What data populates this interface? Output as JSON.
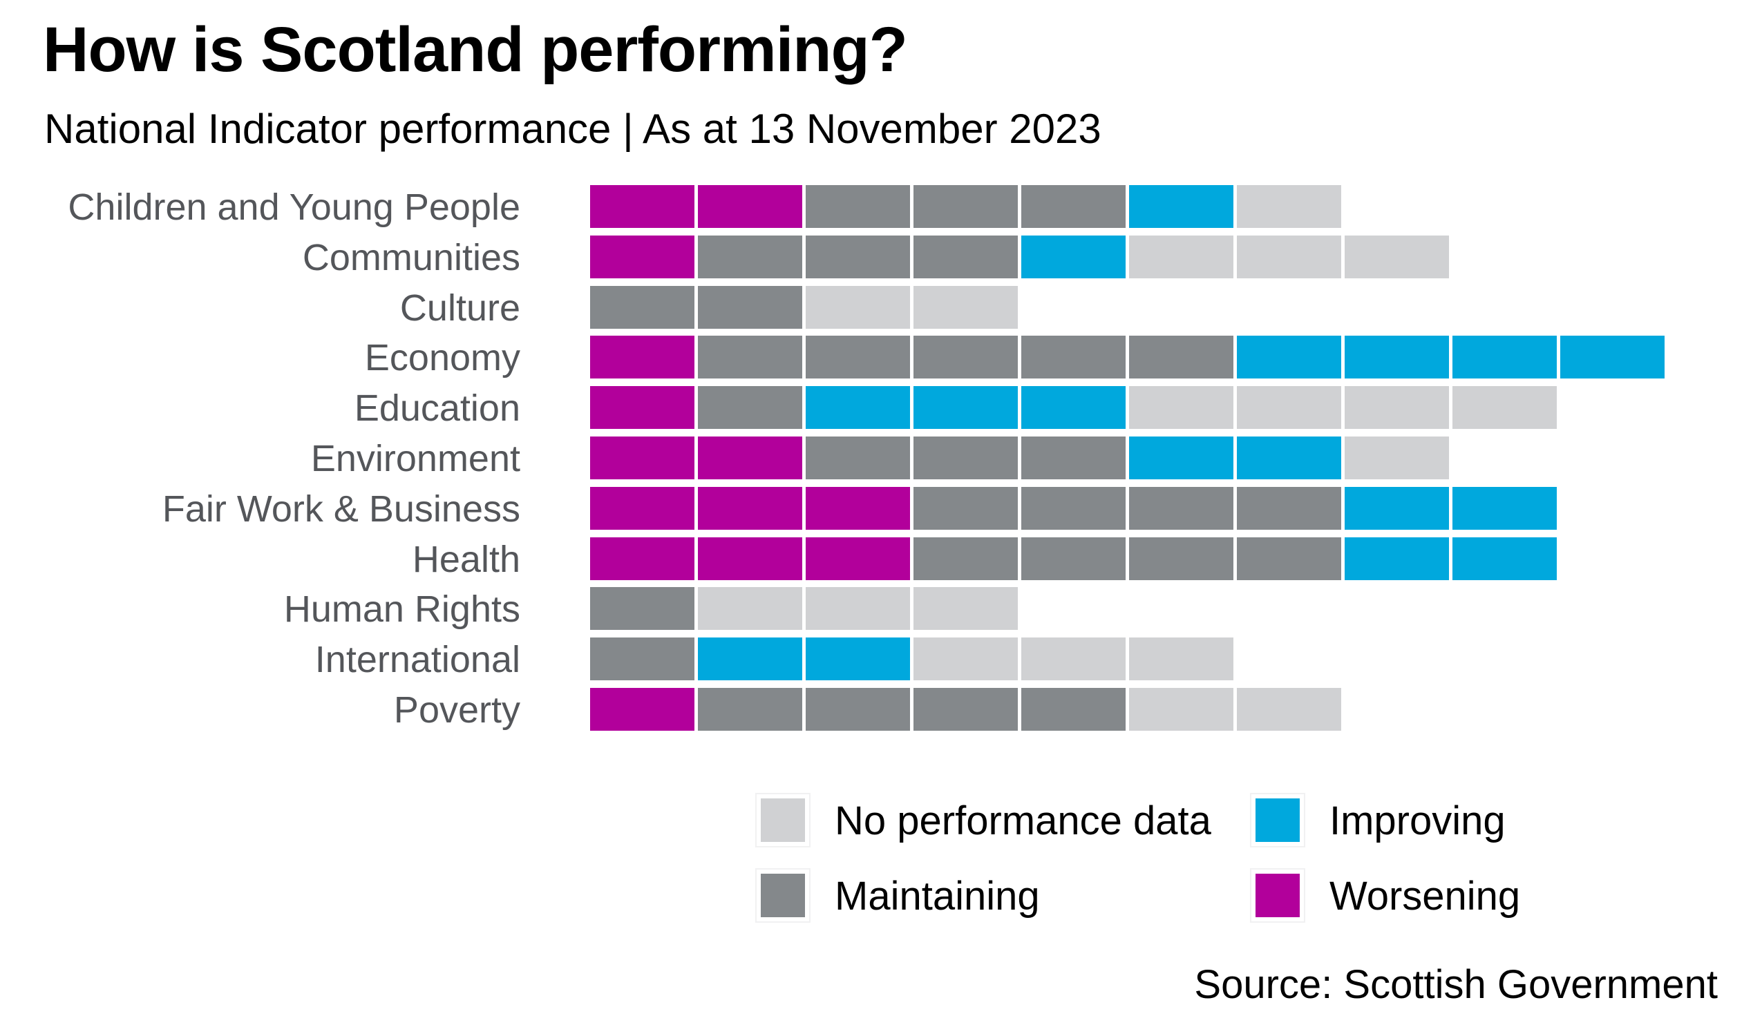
{
  "header": {
    "title": "How is Scotland performing?",
    "subtitle": "National Indicator performance | As at 13 November 2023"
  },
  "source": "Source: Scottish Government",
  "colors": {
    "worsening": "#b2009b",
    "maintaining": "#84888b",
    "improving": "#00a8dd",
    "no_data": "#d0d1d3",
    "category_label_text": "#54565a",
    "background": "#ffffff"
  },
  "legend": {
    "items": [
      {
        "label": "No performance data",
        "key": "no_data"
      },
      {
        "label": "Improving",
        "key": "improving"
      },
      {
        "label": "Maintaining",
        "key": "maintaining"
      },
      {
        "label": "Worsening",
        "key": "worsening"
      }
    ]
  },
  "chart_data": {
    "type": "bar",
    "orientation": "horizontal",
    "unit": "one block = one National Indicator",
    "title": "How is Scotland performing?",
    "subtitle": "National Indicator performance | As at 13 November 2023",
    "legend_position": "bottom",
    "grid": false,
    "categories": [
      "Children and Young People",
      "Communities",
      "Culture",
      "Economy",
      "Education",
      "Environment",
      "Fair Work & Business",
      "Health",
      "Human Rights",
      "International",
      "Poverty"
    ],
    "segment_order": [
      "worsening",
      "maintaining",
      "improving",
      "no_data"
    ],
    "series": [
      {
        "name": "Worsening",
        "key": "worsening",
        "values": [
          2,
          1,
          0,
          1,
          1,
          2,
          3,
          3,
          0,
          0,
          1
        ]
      },
      {
        "name": "Maintaining",
        "key": "maintaining",
        "values": [
          3,
          3,
          2,
          5,
          1,
          3,
          4,
          4,
          1,
          1,
          4
        ]
      },
      {
        "name": "Improving",
        "key": "improving",
        "values": [
          1,
          1,
          0,
          4,
          3,
          2,
          2,
          2,
          0,
          2,
          0
        ]
      },
      {
        "name": "No performance data",
        "key": "no_data",
        "values": [
          1,
          3,
          2,
          0,
          4,
          1,
          0,
          0,
          3,
          3,
          2
        ]
      }
    ],
    "totals_per_category": [
      7,
      8,
      4,
      10,
      9,
      8,
      9,
      9,
      4,
      6,
      7
    ]
  }
}
